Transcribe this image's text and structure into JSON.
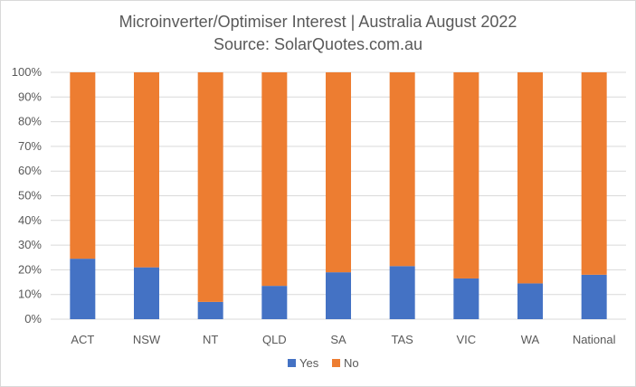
{
  "chart_data": {
    "type": "bar",
    "stacked": "percent",
    "title": "Microinverter/Optimiser  Interest | Australia August 2022",
    "subtitle": "Source: SolarQuotes.com.au",
    "xlabel": "",
    "ylabel": "",
    "categories": [
      "ACT",
      "NSW",
      "NT",
      "QLD",
      "SA",
      "TAS",
      "VIC",
      "WA",
      "National"
    ],
    "series": [
      {
        "name": "Yes",
        "color": "#4472c4",
        "values": [
          24.5,
          21,
          7,
          13.5,
          19,
          21.5,
          16.5,
          14.5,
          18
        ]
      },
      {
        "name": "No",
        "color": "#ed7d31",
        "values": [
          75.5,
          79,
          93,
          86.5,
          81,
          78.5,
          83.5,
          85.5,
          82
        ]
      }
    ],
    "ylim": [
      0,
      100
    ],
    "yticks": [
      "0%",
      "10%",
      "20%",
      "30%",
      "40%",
      "50%",
      "60%",
      "70%",
      "80%",
      "90%",
      "100%"
    ],
    "grid": true,
    "gridColor": "#d9d9d9",
    "legend": "bottom"
  }
}
